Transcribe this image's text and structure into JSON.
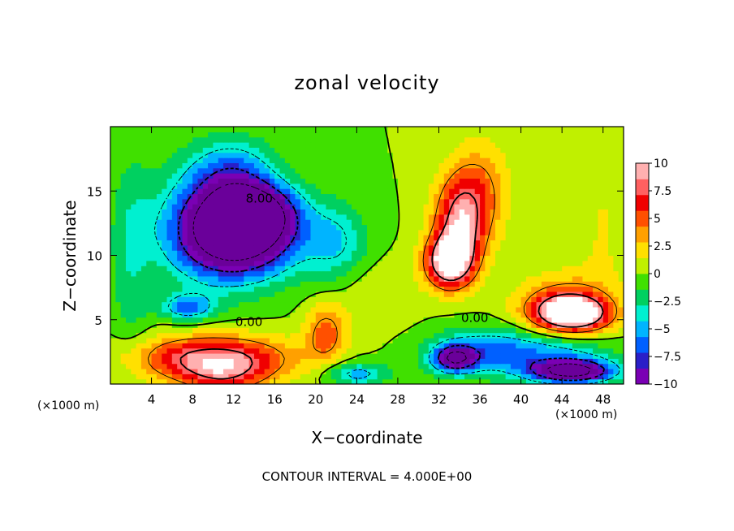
{
  "chart_data": {
    "type": "heatmap",
    "title": "zonal velocity",
    "xlabel": "X−coordinate",
    "ylabel": "Z−coordinate",
    "x_unit": "(×1000 m)",
    "x_unit_right": "(×1000 m)",
    "xlim": [
      0,
      50
    ],
    "ylim": [
      0,
      20
    ],
    "x_ticks": [
      4,
      8,
      12,
      16,
      20,
      24,
      28,
      32,
      36,
      40,
      44,
      48
    ],
    "y_ticks": [
      5,
      10,
      15
    ],
    "x_tick_labels": [
      "4",
      "8",
      "12",
      "16",
      "20",
      "24",
      "28",
      "32",
      "36",
      "40",
      "44",
      "48"
    ],
    "y_tick_labels": [
      "5",
      "10",
      "15"
    ],
    "colorbar": {
      "range": [
        -10,
        10
      ],
      "ticks": [
        10,
        7.5,
        5,
        2.5,
        0,
        -2.5,
        -5,
        -7.5,
        -10
      ],
      "tick_labels": [
        "10",
        "7.5",
        "5",
        "2.5",
        "0",
        "−2.5",
        "−5",
        "−7.5",
        "−10"
      ],
      "colors": [
        "#7a00b4",
        "#2a1fc8",
        "#0060ff",
        "#00b4ff",
        "#00f0d0",
        "#00d060",
        "#40e000",
        "#c0f000",
        "#ffe000",
        "#ffa000",
        "#ff5000",
        "#f00000",
        "#ff6060",
        "#ffb0b0"
      ]
    },
    "contour_interval": 4.0,
    "contour_labels": [
      "8.00",
      "0.00",
      "0.00"
    ],
    "footer": "CONTOUR INTERVAL = 4.000E+00",
    "features": [
      {
        "x": 13,
        "z": 11.5,
        "value": -12,
        "rx": 5.5,
        "rz": 3.0
      },
      {
        "x": 14,
        "z": 13.5,
        "value": -9,
        "rx": 4.0,
        "rz": 2.0
      },
      {
        "x": 10,
        "z": 12.5,
        "value": -7,
        "rx": 5.5,
        "rz": 4.5
      },
      {
        "x": 12,
        "z": 16.5,
        "value": -4.5,
        "rx": 4.0,
        "rz": 2.5
      },
      {
        "x": 7.5,
        "z": 6,
        "value": -6,
        "rx": 2.5,
        "rz": 1.0
      },
      {
        "x": 22,
        "z": 11,
        "value": -4,
        "rx": 3.0,
        "rz": 3.0
      },
      {
        "x": 2,
        "z": 10,
        "value": -2.5,
        "rx": 2.0,
        "rz": 8.0
      },
      {
        "x": 10,
        "z": 2,
        "value": 9,
        "rx": 7.5,
        "rz": 1.8
      },
      {
        "x": 11,
        "z": 0.5,
        "value": 4,
        "rx": 4.0,
        "rz": 1.5
      },
      {
        "x": 21,
        "z": 4,
        "value": 5,
        "rx": 2.0,
        "rz": 2.2
      },
      {
        "x": 33,
        "z": 9.5,
        "value": 11,
        "rx": 2.3,
        "rz": 2.0
      },
      {
        "x": 34,
        "z": 12.5,
        "value": 8,
        "rx": 2.5,
        "rz": 3.5
      },
      {
        "x": 36,
        "z": 15,
        "value": 4,
        "rx": 3.0,
        "rz": 4.0
      },
      {
        "x": 45,
        "z": 5.5,
        "value": 11,
        "rx": 3.5,
        "rz": 1.4
      },
      {
        "x": 44,
        "z": 6,
        "value": 5,
        "rx": 4.5,
        "rz": 2.5
      },
      {
        "x": 33.5,
        "z": 2,
        "value": -10,
        "rx": 2.0,
        "rz": 1.0
      },
      {
        "x": 36,
        "z": 2.5,
        "value": -5,
        "rx": 5.0,
        "rz": 1.8
      },
      {
        "x": 45,
        "z": 1,
        "value": -13,
        "rx": 4.0,
        "rz": 0.9
      },
      {
        "x": 43,
        "z": 2.5,
        "value": -5,
        "rx": 6.0,
        "rz": 1.8
      },
      {
        "x": 24,
        "z": 0.8,
        "value": -5,
        "rx": 3.0,
        "rz": 0.9
      },
      {
        "x": 48,
        "z": 12,
        "value": 1.5,
        "rx": 3.0,
        "rz": 7.0
      },
      {
        "x": 26,
        "z": 7,
        "value": 1.5,
        "rx": 4.0,
        "rz": 2.5
      }
    ]
  }
}
